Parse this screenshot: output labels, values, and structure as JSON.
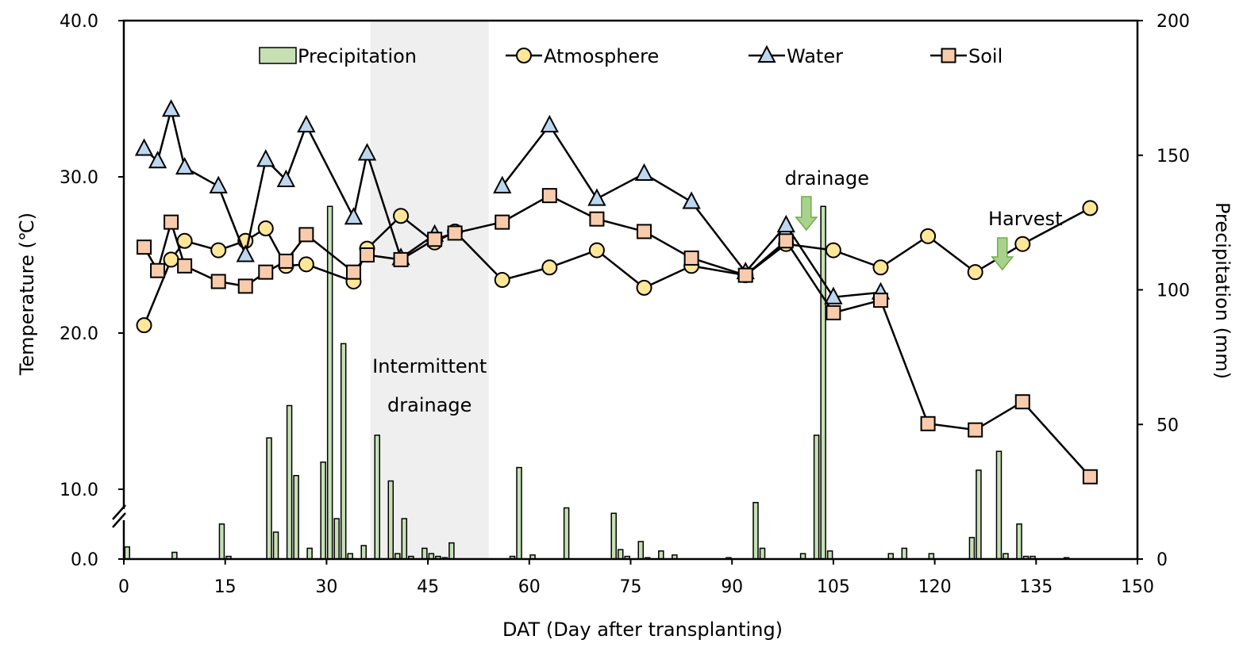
{
  "chart_data": {
    "type": "line",
    "xlabel": "DAT (Day after transplanting)",
    "ylabel_left": "Temperature (℃)",
    "ylabel_right": "Precipitation (mm)",
    "x_ticks": [
      0,
      15,
      30,
      45,
      60,
      75,
      90,
      105,
      120,
      135,
      150
    ],
    "x_tick_labels": [
      "0",
      "15",
      "30",
      "45",
      "60",
      "75",
      "90",
      "105",
      "120",
      "135",
      "150"
    ],
    "xlim": [
      0,
      150
    ],
    "y_left_ticks": [
      0,
      10,
      20,
      30,
      40
    ],
    "y_left_tick_labels": [
      "0.0",
      "10.0",
      "20.0",
      "30.0",
      "40.0"
    ],
    "y_left_broken_axis": true,
    "y_right_ticks": [
      0,
      50,
      100,
      150,
      200
    ],
    "y_right_tick_labels": [
      "0",
      "50",
      "100",
      "150",
      "200"
    ],
    "ylim_right": [
      0,
      200
    ],
    "legend_position": "top",
    "shaded_region": {
      "x": [
        36.5,
        54
      ],
      "label_lines": [
        "Intermittent",
        "drainage"
      ]
    },
    "annotations": [
      {
        "text": "drainage",
        "x": 101
      },
      {
        "text": "Harvest",
        "x": 130
      }
    ],
    "series": [
      {
        "name": "Precipitation",
        "kind": "bar",
        "axis": "right",
        "color": "#c6e0b4",
        "x": [
          0.5,
          7.5,
          14.5,
          15.5,
          21.5,
          22.5,
          24.5,
          25.5,
          27.5,
          29.5,
          30.5,
          31.5,
          32.5,
          33.5,
          35.5,
          37.5,
          39.5,
          40.5,
          41.5,
          42.5,
          44.5,
          45.5,
          46.5,
          47.5,
          48.5,
          57.5,
          58.5,
          60.5,
          65.5,
          72.5,
          73.5,
          74.5,
          76.5,
          77.5,
          79.5,
          81.5,
          89.5,
          93.5,
          94.5,
          100.5,
          102.5,
          103.5,
          104.5,
          113.5,
          115.5,
          119.5,
          125.5,
          126.5,
          129.5,
          130.5,
          132.5,
          133.5,
          134.5,
          139.5
        ],
        "values": [
          4.5,
          2.5,
          13,
          1,
          45,
          10,
          57,
          31,
          4,
          36,
          131,
          15,
          80,
          2,
          5,
          46,
          29,
          2,
          15,
          1,
          4,
          2,
          1,
          0.5,
          6,
          1,
          34,
          1.5,
          19,
          17,
          3.5,
          1,
          6.5,
          0.5,
          3,
          1.5,
          0.5,
          21,
          4,
          2,
          46,
          131,
          3,
          2,
          4,
          2,
          8,
          33,
          40,
          2,
          13,
          1,
          1,
          0.5
        ]
      },
      {
        "name": "Atmosphere",
        "kind": "line",
        "axis": "left",
        "marker": "circle",
        "color": "#ffe699",
        "x": [
          3,
          7,
          9,
          14,
          18,
          21,
          24,
          27,
          34,
          36,
          41,
          46,
          49,
          56,
          63,
          70,
          77,
          84,
          92,
          98,
          105,
          112,
          119,
          126,
          133,
          143
        ],
        "values": [
          20.5,
          24.7,
          25.9,
          25.3,
          25.9,
          26.7,
          24.3,
          24.4,
          23.3,
          25.4,
          27.5,
          25.8,
          26.5,
          23.4,
          24.2,
          25.3,
          22.9,
          24.3,
          23.7,
          25.7,
          25.3,
          24.2,
          26.2,
          23.9,
          25.7,
          28.0
        ]
      },
      {
        "name": "Water",
        "kind": "line",
        "axis": "left",
        "marker": "triangle",
        "color": "#bdd7ee",
        "segments": [
          {
            "x": [
              3,
              5,
              7,
              9,
              14,
              18,
              21,
              24,
              27,
              34,
              36,
              41,
              46
            ],
            "values": [
              31.8,
              31.0,
              34.3,
              30.6,
              29.4,
              25.0,
              31.1,
              29.8,
              33.3,
              27.4,
              31.5,
              24.8,
              26.3
            ]
          },
          {
            "x": [
              56,
              63,
              70,
              77,
              84,
              92,
              98,
              105,
              112
            ],
            "values": [
              29.4,
              33.3,
              28.6,
              30.2,
              28.4,
              23.9,
              26.9,
              22.3,
              22.6
            ]
          }
        ]
      },
      {
        "name": "Soil",
        "kind": "line",
        "axis": "left",
        "marker": "square",
        "color": "#f8cbad",
        "x": [
          3,
          5,
          7,
          9,
          14,
          18,
          21,
          24,
          27,
          34,
          36,
          41,
          46,
          49,
          56,
          63,
          70,
          77,
          84,
          92,
          98,
          105,
          112,
          119,
          126,
          133,
          143
        ],
        "values": [
          25.5,
          24.0,
          27.1,
          24.3,
          23.3,
          23.0,
          23.9,
          24.6,
          26.3,
          23.9,
          25.0,
          24.7,
          26.0,
          26.4,
          27.1,
          28.8,
          27.3,
          26.5,
          24.8,
          23.7,
          25.9,
          21.3,
          22.1,
          14.2,
          13.8,
          15.6,
          10.8
        ]
      }
    ]
  }
}
